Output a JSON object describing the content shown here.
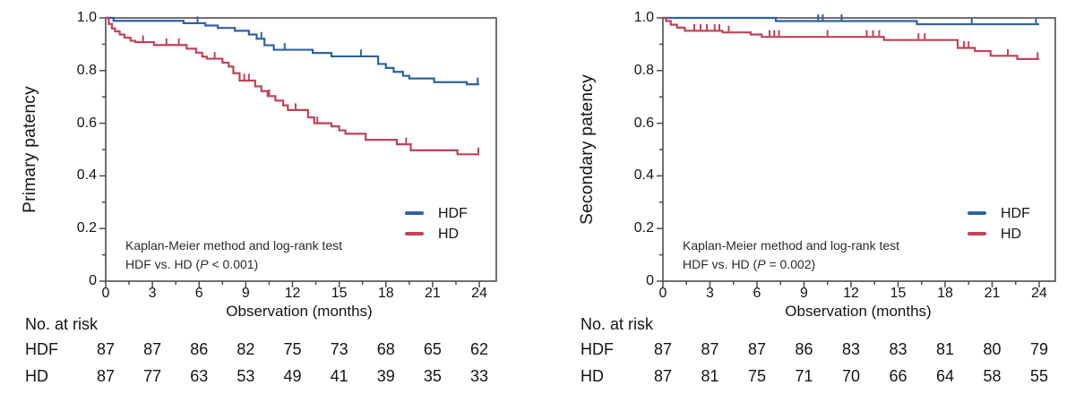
{
  "charts": [
    {
      "ylabel": "Primary patency",
      "xlabel": "Observation (months)",
      "annotation": {
        "line1": "Kaplan-Meier method and log-rank test",
        "p_prefix": "HDF vs. HD (",
        "p_symbol": "P",
        "p_suffix": " < 0.001)"
      },
      "at_risk": {
        "title": "No. at risk",
        "rows": [
          {
            "label": "HDF",
            "values": [
              "87",
              "87",
              "86",
              "82",
              "75",
              "73",
              "68",
              "65",
              "62"
            ]
          },
          {
            "label": "HD",
            "values": [
              "87",
              "77",
              "63",
              "53",
              "49",
              "41",
              "39",
              "35",
              "33"
            ]
          }
        ]
      }
    },
    {
      "ylabel": "Secondary patency",
      "xlabel": "Observation (months)",
      "annotation": {
        "line1": "Kaplan-Meier method and log-rank test",
        "p_prefix": "HDF vs. HD (",
        "p_symbol": "P",
        "p_suffix": " = 0.002)"
      },
      "at_risk": {
        "title": "No. at risk",
        "rows": [
          {
            "label": "HDF",
            "values": [
              "87",
              "87",
              "87",
              "86",
              "83",
              "83",
              "81",
              "80",
              "79"
            ]
          },
          {
            "label": "HD",
            "values": [
              "87",
              "81",
              "75",
              "71",
              "70",
              "66",
              "64",
              "58",
              "55"
            ]
          }
        ]
      }
    }
  ],
  "chart_data": [
    {
      "type": "line",
      "subtype": "kaplan-meier-step",
      "title": "Primary patency (HDF vs HD)",
      "xlabel": "Observation (months)",
      "ylabel": "Primary patency",
      "xlim": [
        0,
        24
      ],
      "ylim": [
        0,
        1.0
      ],
      "x_ticks": [
        0,
        3,
        6,
        9,
        12,
        15,
        18,
        21,
        24
      ],
      "y_ticks": [
        1.0,
        0.8,
        0.6,
        0.4,
        0.2,
        0
      ],
      "y_tick_labels": [
        "1.0",
        "0.8",
        "0.6",
        "0.4",
        "0.2",
        "0"
      ],
      "x_minor_step": 1.5,
      "y_minor_step": 0.1,
      "legend_position": "lower right",
      "grid": false,
      "p_value_text": "HDF vs. HD (P < 0.001)",
      "series": [
        {
          "name": "HDF",
          "color": "#30619f",
          "steps": [
            [
              0,
              1.0
            ],
            [
              0.5,
              0.989
            ],
            [
              5.0,
              0.98
            ],
            [
              6.4,
              0.971
            ],
            [
              7.2,
              0.962
            ],
            [
              8.3,
              0.951
            ],
            [
              9.2,
              0.937
            ],
            [
              9.7,
              0.921
            ],
            [
              10.2,
              0.896
            ],
            [
              10.8,
              0.879
            ],
            [
              13.3,
              0.867
            ],
            [
              14.5,
              0.854
            ],
            [
              17.5,
              0.825
            ],
            [
              18.0,
              0.81
            ],
            [
              18.5,
              0.795
            ],
            [
              19.1,
              0.78
            ],
            [
              19.5,
              0.77
            ],
            [
              21.1,
              0.756
            ],
            [
              23.2,
              0.748
            ]
          ],
          "censor_ticks": [
            5.9,
            10.0,
            11.5,
            16.4,
            23.9
          ]
        },
        {
          "name": "HD",
          "color": "#c04357",
          "steps": [
            [
              0,
              1.0
            ],
            [
              0.2,
              0.977
            ],
            [
              0.4,
              0.96
            ],
            [
              0.6,
              0.949
            ],
            [
              0.9,
              0.937
            ],
            [
              1.2,
              0.925
            ],
            [
              1.6,
              0.913
            ],
            [
              1.9,
              0.908
            ],
            [
              3.1,
              0.897
            ],
            [
              5.2,
              0.883
            ],
            [
              5.8,
              0.868
            ],
            [
              6.2,
              0.853
            ],
            [
              6.5,
              0.845
            ],
            [
              7.5,
              0.83
            ],
            [
              7.9,
              0.815
            ],
            [
              8.2,
              0.79
            ],
            [
              8.6,
              0.762
            ],
            [
              9.6,
              0.74
            ],
            [
              10.0,
              0.722
            ],
            [
              10.4,
              0.703
            ],
            [
              10.9,
              0.686
            ],
            [
              11.4,
              0.668
            ],
            [
              11.7,
              0.65
            ],
            [
              13.0,
              0.622
            ],
            [
              13.4,
              0.6
            ],
            [
              14.5,
              0.588
            ],
            [
              15.0,
              0.573
            ],
            [
              15.4,
              0.56
            ],
            [
              16.7,
              0.537
            ],
            [
              18.7,
              0.52
            ],
            [
              19.6,
              0.497
            ],
            [
              22.6,
              0.482
            ]
          ],
          "censor_ticks": [
            2.4,
            3.9,
            4.7,
            7.0,
            8.9,
            9.2,
            10.5,
            12.2,
            13.6,
            19.3,
            24.0
          ]
        }
      ]
    },
    {
      "type": "line",
      "subtype": "kaplan-meier-step",
      "title": "Secondary patency (HDF vs HD)",
      "xlabel": "Observation (months)",
      "ylabel": "Secondary patency",
      "xlim": [
        0,
        24
      ],
      "ylim": [
        0,
        1.0
      ],
      "x_ticks": [
        0,
        3,
        6,
        9,
        12,
        15,
        18,
        21,
        24
      ],
      "y_ticks": [
        1.0,
        0.8,
        0.6,
        0.4,
        0.2,
        0
      ],
      "y_tick_labels": [
        "1.0",
        "0.8",
        "0.6",
        "0.4",
        "0.2",
        "0"
      ],
      "x_minor_step": 1.5,
      "y_minor_step": 0.1,
      "legend_position": "lower right",
      "grid": false,
      "p_value_text": "HDF vs. HD (P = 0.002)",
      "series": [
        {
          "name": "HDF",
          "color": "#30619f",
          "steps": [
            [
              0,
              1.0
            ],
            [
              7.2,
              0.988
            ],
            [
              16.2,
              0.976
            ]
          ],
          "censor_ticks": [
            9.9,
            10.2,
            11.4,
            19.7,
            23.8
          ]
        },
        {
          "name": "HD",
          "color": "#c04357",
          "steps": [
            [
              0,
              1.0
            ],
            [
              0.2,
              0.988
            ],
            [
              0.5,
              0.974
            ],
            [
              0.9,
              0.963
            ],
            [
              1.4,
              0.951
            ],
            [
              3.8,
              0.945
            ],
            [
              5.6,
              0.937
            ],
            [
              6.3,
              0.928
            ],
            [
              14.1,
              0.916
            ],
            [
              18.8,
              0.886
            ],
            [
              19.9,
              0.874
            ],
            [
              20.9,
              0.856
            ],
            [
              22.6,
              0.844
            ]
          ],
          "censor_ticks": [
            2.0,
            2.4,
            2.8,
            3.3,
            3.6,
            4.2,
            6.8,
            7.1,
            7.4,
            10.5,
            13.0,
            13.4,
            13.8,
            16.3,
            16.7,
            19.2,
            19.5,
            22.0,
            23.9
          ]
        }
      ]
    }
  ]
}
